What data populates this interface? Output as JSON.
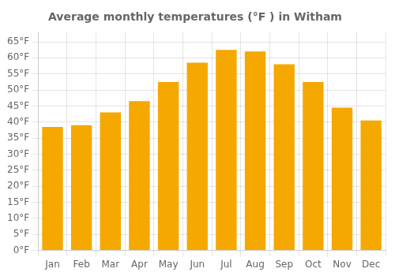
{
  "chart_data": {
    "type": "bar",
    "title": "Average monthly temperatures (°F ) in Witham",
    "categories": [
      "Jan",
      "Feb",
      "Mar",
      "Apr",
      "May",
      "Jun",
      "Jul",
      "Aug",
      "Sep",
      "Oct",
      "Nov",
      "Dec"
    ],
    "values": [
      38.5,
      39.0,
      43.0,
      46.5,
      52.5,
      58.5,
      62.5,
      62.0,
      58.0,
      52.5,
      44.5,
      40.5
    ],
    "color": "#F5A800",
    "ylim": [
      0,
      68
    ],
    "yticks": [
      {
        "value": 0,
        "label": "0°F"
      },
      {
        "value": 5,
        "label": "5°F"
      },
      {
        "value": 10,
        "label": "10°F"
      },
      {
        "value": 15,
        "label": "15°F"
      },
      {
        "value": 20,
        "label": "20°F"
      },
      {
        "value": 25,
        "label": "25°F"
      },
      {
        "value": 30,
        "label": "30°F"
      },
      {
        "value": 35,
        "label": "35°F"
      },
      {
        "value": 40,
        "label": "40°F"
      },
      {
        "value": 45,
        "label": "45°F"
      },
      {
        "value": 50,
        "label": "50°F"
      },
      {
        "value": 55,
        "label": "55°F"
      },
      {
        "value": 60,
        "label": "60°F"
      },
      {
        "value": 65,
        "label": "65°F"
      }
    ],
    "grid": true
  }
}
